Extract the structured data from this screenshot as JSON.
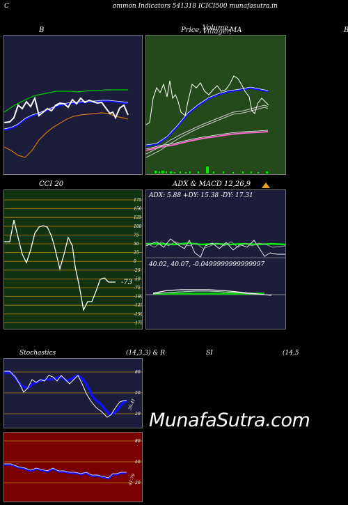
{
  "header": {
    "left_char": "C",
    "title": "ommon  Indicators 541318 ICICI500  munafasutra.in"
  },
  "bb_panel": {
    "title": "B"
  },
  "price_panel": {
    "title_a": "Price,",
    "title_b": "Volume,",
    "title_b2": "Villager,",
    "title_c": "MA",
    "right_char": "B"
  },
  "cci_panel": {
    "title": "CCI 20",
    "current": "-73",
    "ticks": [
      "175",
      "150",
      "125",
      "100",
      "75",
      "50",
      "25",
      "0",
      "-25",
      "-50",
      "-75",
      "-100",
      "-125",
      "-150",
      "-175"
    ],
    "colors": {
      "bg": "#113311",
      "grid": "#b8860b",
      "line": "#ffffff"
    }
  },
  "adx_panel": {
    "title": "ADX  & MACD 12,26,9",
    "adx_text": "ADX: 5.88  +DY: 15.38  -DY: 17.31",
    "macd_text": "40.02,  40.07,  -0.0499999999999997"
  },
  "stoch_panel": {
    "title_a": "Stochastics",
    "title_b": "(14,3,3) & R",
    "title_c": "SI",
    "title_d": "(14,5",
    "stoch_ticks": [
      "80",
      "50",
      "20"
    ],
    "stoch_value": "39.41",
    "rsi_ticks": [
      "80",
      "50",
      "20"
    ],
    "rsi_value": "41.79"
  },
  "watermark": "MunafaSutra.com",
  "colors": {
    "dark_navy": "#1b1d3a",
    "price_green": "#244a1c",
    "rsi_red": "#7a0000",
    "blue": "#1010ff",
    "green": "#00cc00",
    "orange": "#d07a10"
  }
}
